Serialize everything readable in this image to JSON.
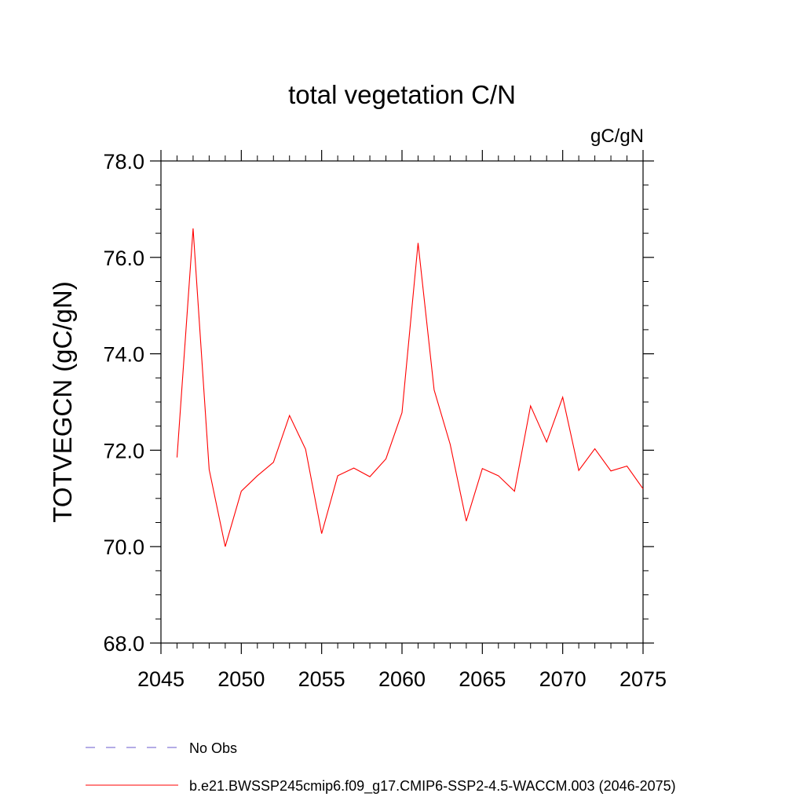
{
  "chart_data": {
    "type": "line",
    "title": "total vegetation C/N",
    "units_label": "gC/gN",
    "ylabel": "TOTVEGCN  (gC/gN)",
    "xlabel": "",
    "xlim": [
      2045,
      2075
    ],
    "ylim": [
      68,
      78
    ],
    "x_ticks": [
      2045,
      2050,
      2055,
      2060,
      2065,
      2070,
      2075
    ],
    "y_ticks": [
      "68.0",
      "70.0",
      "72.0",
      "74.0",
      "76.0",
      "78.0"
    ],
    "grid": false,
    "legend_position": "bottom",
    "series": [
      {
        "name": "No Obs",
        "color": "#6a5acd",
        "dash": true,
        "x": [],
        "y": []
      },
      {
        "name": "b.e21.BWSSP245cmip6.f09_g17.CMIP6-SSP2-4.5-WACCM.003 (2046-2075)",
        "color": "#ff0000",
        "dash": false,
        "x": [
          2046,
          2047,
          2048,
          2049,
          2050,
          2051,
          2052,
          2053,
          2054,
          2055,
          2056,
          2057,
          2058,
          2059,
          2060,
          2061,
          2062,
          2063,
          2064,
          2065,
          2066,
          2067,
          2068,
          2069,
          2070,
          2071,
          2072,
          2073,
          2074,
          2075
        ],
        "y": [
          71.85,
          76.6,
          71.6,
          70.0,
          71.15,
          71.47,
          71.75,
          72.72,
          72.02,
          70.27,
          71.47,
          71.63,
          71.45,
          71.82,
          72.78,
          76.3,
          73.25,
          72.12,
          70.53,
          71.62,
          71.47,
          71.15,
          72.92,
          72.17,
          73.1,
          71.58,
          72.03,
          71.57,
          71.67,
          71.2
        ]
      }
    ]
  }
}
